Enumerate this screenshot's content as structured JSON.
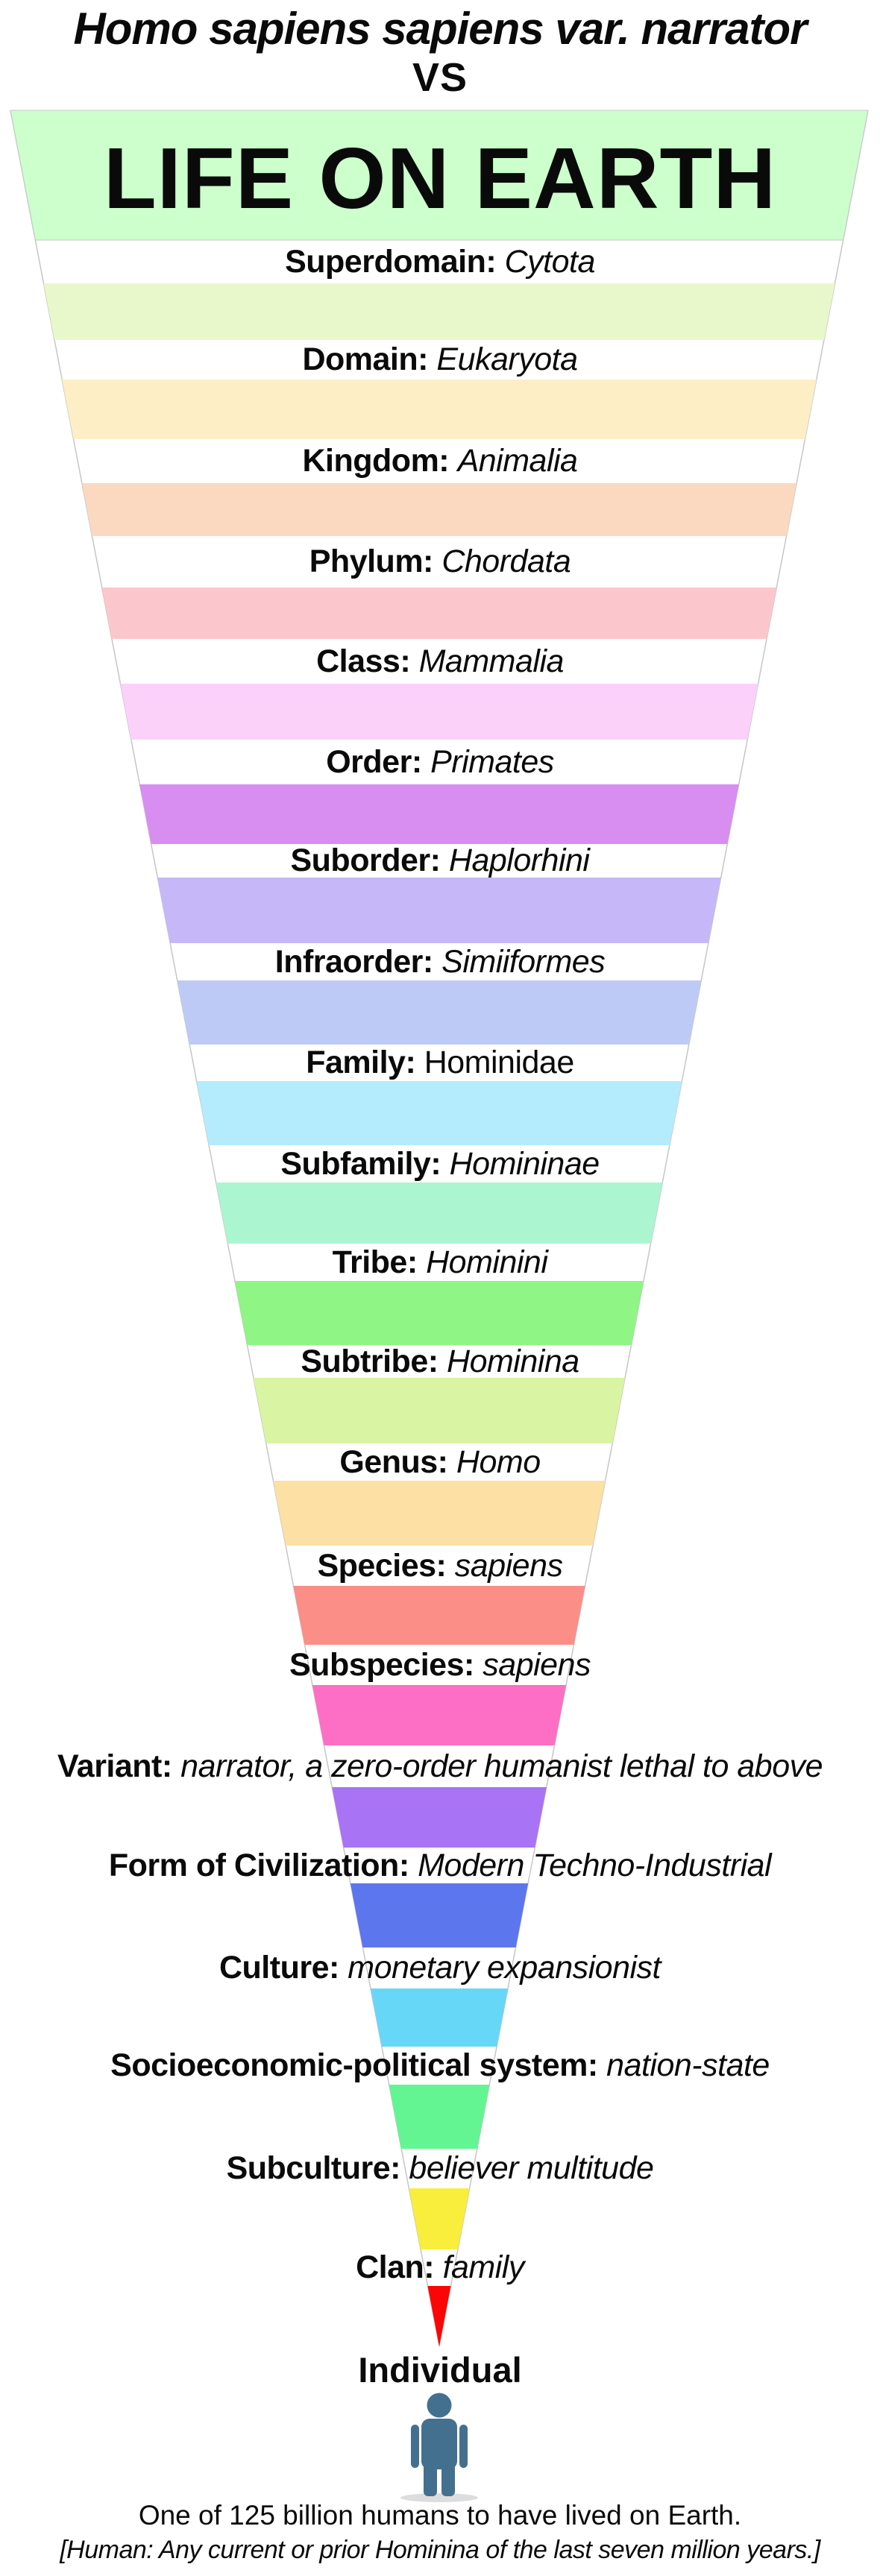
{
  "page": {
    "title": "Homo sapiens sapiens var. narrator",
    "vs": "VS",
    "funnel_title": "LIFE ON EARTH"
  },
  "colors": {
    "funnel_top_fill": "#ccffcc",
    "funnel_edge": "#c6c6c6",
    "arrow_red": "#fa0606",
    "person_blue": "#44708f",
    "person_shadow": "#dddddd"
  },
  "ranks": [
    {
      "label": "Superdomain:",
      "value": "Cytota",
      "italic": true,
      "band_color": "#e9f8cb"
    },
    {
      "label": "Domain:",
      "value": "Eukaryota",
      "italic": true,
      "band_color": "#fdeec6"
    },
    {
      "label": "Kingdom:",
      "value": "Animalia",
      "italic": true,
      "band_color": "#fbd9c0"
    },
    {
      "label": "Phylum:",
      "value": "Chordata",
      "italic": true,
      "band_color": "#fcc7cc"
    },
    {
      "label": "Class:",
      "value": "Mammalia",
      "italic": true,
      "band_color": "#fbd1f9"
    },
    {
      "label": "Order:",
      "value": "Primates",
      "italic": true,
      "band_color": "#d88df1"
    },
    {
      "label": "Suborder:",
      "value": "Haplorhini",
      "italic": true,
      "band_color": "#c6b8f8"
    },
    {
      "label": "Infraorder:",
      "value": "Simiiformes",
      "italic": true,
      "band_color": "#becaf6"
    },
    {
      "label": "Family:",
      "value": "Hominidae",
      "italic": false,
      "band_color": "#b4ecfd"
    },
    {
      "label": "Subfamily:",
      "value": "Homininae",
      "italic": true,
      "band_color": "#acf5d1"
    },
    {
      "label": "Tribe:",
      "value": "Hominini",
      "italic": true,
      "band_color": "#8ff584"
    },
    {
      "label": "Subtribe:",
      "value": "Hominina",
      "italic": true,
      "band_color": "#d9f4a2"
    },
    {
      "label": "Genus:",
      "value": "Homo",
      "italic": true,
      "band_color": "#fce0a4"
    },
    {
      "label": "Species:",
      "value": "sapiens",
      "italic": true,
      "band_color": "#fb8e87"
    },
    {
      "label": "Subspecies:",
      "value": "sapiens",
      "italic": true,
      "band_color": "#fc6fc4"
    },
    {
      "label": "Variant:",
      "value": "narrator, a zero-order humanist lethal to above",
      "italic": true,
      "band_color": "#a873f4"
    },
    {
      "label": "Form of Civilization:",
      "value": "Modern Techno-Industrial",
      "italic": true,
      "band_color": "#5c76ee"
    },
    {
      "label": "Culture:",
      "value": "monetary expansionist",
      "italic": true,
      "band_color": "#67d7f7"
    },
    {
      "label": "Socioeconomic-political system:",
      "value": "nation-state",
      "italic": true,
      "band_color": "#64f593"
    },
    {
      "label": "Subculture:",
      "value": "believer multitude",
      "italic": true,
      "band_color": "#f9ee3b"
    },
    {
      "label": "Clan:",
      "value": "family",
      "italic": true,
      "band_color": null
    }
  ],
  "terminus": {
    "individual_label": "Individual",
    "caption": "One of 125 billion humans to have lived on Earth.",
    "subcaption": "[Human: Any current or prior Hominina of the last seven million years.]"
  }
}
